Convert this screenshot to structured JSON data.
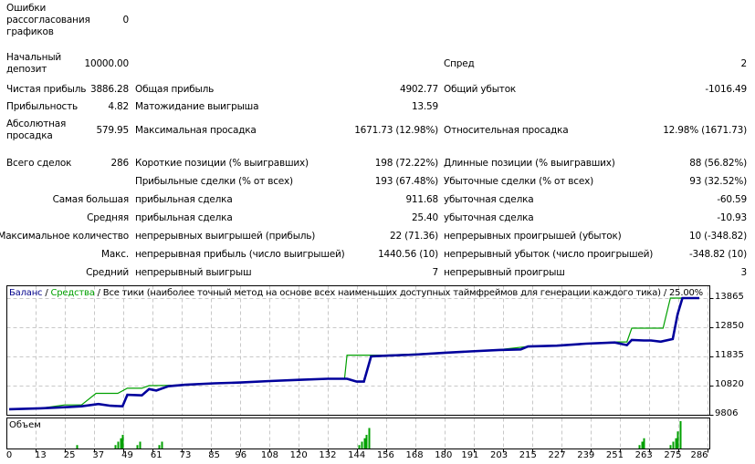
{
  "stats": {
    "rows": [
      {
        "label": "Ошибки\nрассогласования\nграфиков",
        "value": "0"
      },
      {
        "label": "Начальный\nдепозит",
        "value": "10000.00",
        "label2": "Спред",
        "value2": "2"
      },
      {
        "label": "Чистая прибыль",
        "value": "3886.28",
        "label2": "Общая прибыль",
        "value2": "4902.77",
        "label3": "Общий убыток",
        "value3": "-1016.49"
      },
      {
        "label": "Прибыльность",
        "value": "4.82",
        "label2": "Матожидание выигрыша",
        "value2": "13.59"
      },
      {
        "label": "Абсолютная\nпросадка",
        "value": "579.95",
        "label2": "Максимальная просадка",
        "value2": "1671.73 (12.98%)",
        "label3": "Относительная просадка",
        "value3": "12.98% (1671.73)"
      },
      {
        "label": "Всего сделок",
        "value": "286",
        "label2": "Короткие позиции (% выигравших)",
        "value2": "198 (72.22%)",
        "label3": "Длинные позиции (% выигравших)",
        "value3": "88 (56.82%)"
      },
      {
        "label": "",
        "value": "",
        "label2": "Прибыльные сделки (% от всех)",
        "value2": "193 (67.48%)",
        "label3": "Убыточные сделки (% от всех)",
        "value3": "93 (32.52%)"
      },
      {
        "label": "Самая большая",
        "value": "",
        "label2": "прибыльная сделка",
        "value2": "911.68",
        "label3": "убыточная сделка",
        "value3": "-60.59"
      },
      {
        "label": "Средняя",
        "value": "",
        "label2": "прибыльная сделка",
        "value2": "25.40",
        "label3": "убыточная сделка",
        "value3": "-10.93"
      },
      {
        "label": "Максимальное количество",
        "value": "",
        "label2": "непрерывных выигрышей (прибыль)",
        "value2": "22 (71.36)",
        "label3": "непрерывных проигрышей (убыток)",
        "value3": "10 (-348.82)"
      },
      {
        "label": "Макс.",
        "value": "",
        "label2": "непрерывная прибыль (число выигрышей)",
        "value2": "1440.56 (10)",
        "label3": "непрерывный убыток (число проигрышей)",
        "value3": "-348.82 (10)"
      },
      {
        "label": "Средний",
        "value": "",
        "label2": "непрерывный выигрыш",
        "value2": "7",
        "label3": "непрерывный проигрыш",
        "value3": "3"
      }
    ]
  },
  "legend": {
    "balance": "Баланс",
    "sep1": " / ",
    "equity": "Средства",
    "rest": " / Все тики (наиболее точный метод на основе всех наименьших доступных таймфреймов для генерации каждого тика) / 25.00%"
  },
  "volume_label": "Объем",
  "colors": {
    "balance": "#00009c",
    "equity": "#00a000",
    "grid": "#c8c8c8",
    "volume": "#00a000"
  },
  "chart_data": {
    "type": "line",
    "title": "Баланс / Средства / Все тики (наиболее точный метод на основе всех наименьших доступных таймфреймов для генерации каждого тика) / 25.00%",
    "xlabel": "",
    "ylabel": "",
    "x_ticks": [
      "0",
      "13",
      "25",
      "37",
      "49",
      "61",
      "73",
      "85",
      "96",
      "108",
      "120",
      "132",
      "144",
      "156",
      "168",
      "180",
      "191",
      "203",
      "215",
      "227",
      "239",
      "251",
      "263",
      "275",
      "286"
    ],
    "y_ticks": [
      "13865",
      "12850",
      "11835",
      "10820",
      "9806"
    ],
    "ylim": [
      9806,
      13865
    ],
    "xlim": [
      0,
      286
    ],
    "grid": true,
    "series": [
      {
        "name": "Баланс",
        "color": "#00009c",
        "x": [
          0,
          13,
          25,
          30,
          37,
          42,
          47,
          49,
          55,
          58,
          61,
          66,
          73,
          85,
          96,
          108,
          120,
          132,
          140,
          144,
          147,
          150,
          156,
          168,
          180,
          191,
          203,
          212,
          215,
          227,
          239,
          251,
          256,
          258,
          263,
          266,
          270,
          275,
          277,
          279,
          286
        ],
        "values": [
          10000,
          10030,
          10080,
          10100,
          10180,
          10120,
          10100,
          10500,
          10480,
          10700,
          10650,
          10800,
          10850,
          10900,
          10930,
          10980,
          11020,
          11060,
          11060,
          10960,
          10960,
          11840,
          11860,
          11900,
          11960,
          12010,
          12060,
          12080,
          12180,
          12210,
          12280,
          12320,
          12230,
          12410,
          12390,
          12390,
          12350,
          12440,
          13300,
          13865,
          13865
        ]
      },
      {
        "name": "Средства",
        "color": "#00a000",
        "x": [
          0,
          13,
          23,
          30,
          36,
          45,
          49,
          55,
          58,
          61,
          66,
          73,
          85,
          96,
          108,
          120,
          132,
          139,
          140,
          150,
          156,
          168,
          180,
          191,
          203,
          215,
          227,
          239,
          251,
          256,
          258,
          266,
          271,
          274,
          286
        ],
        "values": [
          10000,
          10030,
          10150,
          10150,
          10550,
          10550,
          10730,
          10730,
          10820,
          10820,
          10830,
          10850,
          10900,
          10930,
          10980,
          11020,
          11060,
          11060,
          11880,
          11880,
          11880,
          11920,
          11970,
          12020,
          12070,
          12180,
          12210,
          12280,
          12340,
          12340,
          12820,
          12820,
          12820,
          13865,
          13865
        ]
      },
      {
        "name": "Объем",
        "type": "bar",
        "color": "#00a000",
        "x": [
          28,
          44,
          45,
          46,
          47,
          53,
          54,
          62,
          63,
          145,
          146,
          147,
          148,
          149,
          261,
          262,
          263,
          274,
          275,
          276,
          277,
          278
        ],
        "values": [
          1,
          1,
          2,
          3,
          4,
          1,
          2,
          1,
          2,
          1,
          2,
          3,
          4,
          6,
          1,
          2,
          3,
          1,
          2,
          3,
          5,
          8
        ]
      }
    ]
  }
}
